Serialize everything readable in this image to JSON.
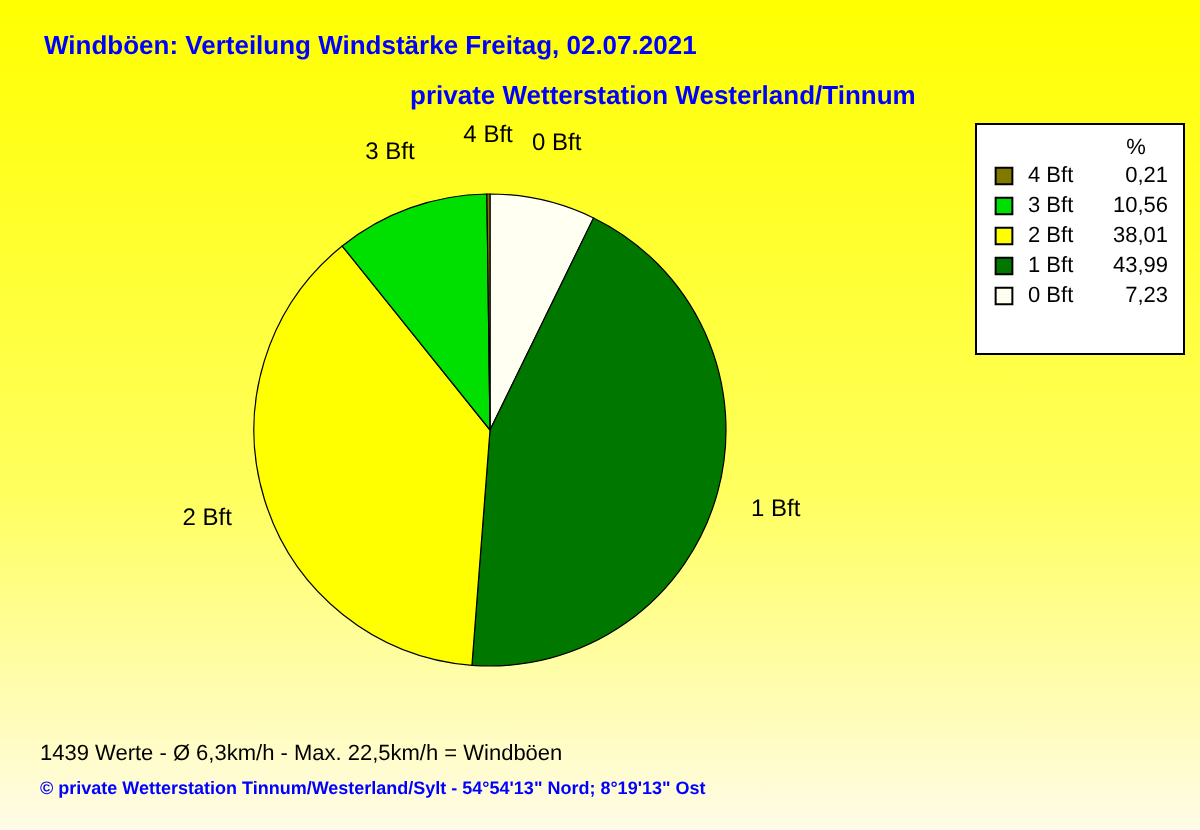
{
  "chart_data": {
    "type": "pie",
    "title": "Windböen: Verteilung Windstärke  Freitag, 02.07.2021",
    "subtitle": "private Wetterstation Westerland/Tinnum",
    "categories": [
      "0 Bft",
      "1 Bft",
      "2 Bft",
      "3 Bft",
      "4 Bft"
    ],
    "values": [
      7.23,
      43.99,
      38.01,
      10.56,
      0.21
    ],
    "value_labels": [
      "7,23",
      "43,99",
      "38,01",
      "10,56",
      "0,21"
    ],
    "colors": [
      "#fffff2",
      "#007800",
      "#ffff00",
      "#00e000",
      "#807800"
    ],
    "legend": "top right",
    "legend_title": "%",
    "annotations": [
      "1439 Werte    -    Ø 6,3km/h  -  Max. 22,5km/h = Windböen",
      "© private Wetterstation Tinnum/Westerland/Sylt   -   54°54'13\" Nord; 8°19'13\" Ost"
    ]
  }
}
